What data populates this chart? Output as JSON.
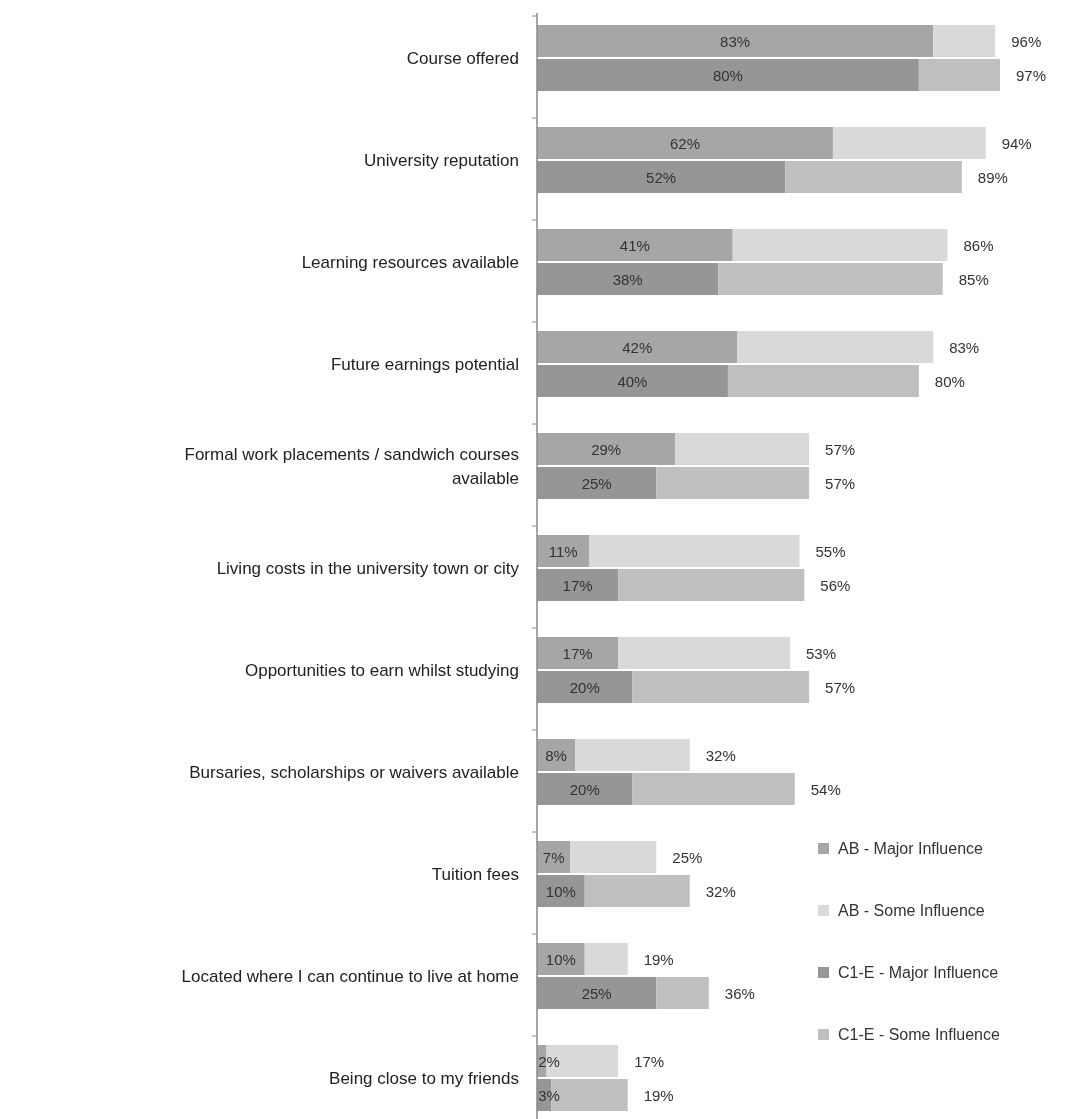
{
  "chart_data": {
    "type": "bar",
    "orientation": "horizontal",
    "stacked": true,
    "categories": [
      "Course offered",
      null,
      null,
      "University reputation",
      null,
      null,
      "Learning resources available",
      null,
      null,
      "Future earnings potential",
      null,
      null,
      "Formal work placements / sandwich courses available",
      null,
      null,
      "Living costs in the university town or city",
      null,
      null,
      "Opportunities to earn whilst studying",
      null,
      null,
      "Bursaries, scholarships or waivers available",
      null,
      null,
      "Tuition fees",
      null,
      null,
      "Located where I can continue to live at home",
      null,
      null,
      "Being close to my friends",
      null,
      null
    ],
    "series": [
      {
        "name": "AB - Major Influence",
        "color": "#a6a6a6",
        "values": [
          83,
          null,
          null,
          62,
          null,
          null,
          41,
          null,
          null,
          42,
          null,
          null,
          29,
          null,
          null,
          11,
          null,
          null,
          17,
          null,
          null,
          8,
          null,
          null,
          7,
          null,
          null,
          10,
          null,
          null,
          2,
          null,
          null
        ],
        "value_labels": [
          "83%",
          null,
          null,
          "62%",
          null,
          null,
          "41%",
          null,
          null,
          "42%",
          null,
          null,
          "29%",
          null,
          null,
          "11%",
          null,
          null,
          "17%",
          null,
          null,
          "8%",
          null,
          null,
          "7%",
          null,
          null,
          "10%",
          null,
          null,
          "2%",
          null,
          null
        ]
      },
      {
        "name": "AB - Some Influence",
        "color": "#d9d9d9",
        "values": [
          13,
          null,
          null,
          32,
          null,
          null,
          45,
          null,
          null,
          41,
          null,
          null,
          28,
          null,
          null,
          44,
          null,
          null,
          36,
          null,
          null,
          24,
          null,
          null,
          18,
          null,
          null,
          9,
          null,
          null,
          15,
          null,
          null
        ]
      },
      {
        "name": "C1-E - Major Influence",
        "color": "#969696",
        "values": [
          null,
          80,
          null,
          null,
          52,
          null,
          null,
          38,
          null,
          null,
          40,
          null,
          null,
          25,
          null,
          null,
          17,
          null,
          null,
          20,
          null,
          null,
          20,
          null,
          null,
          10,
          null,
          null,
          25,
          null,
          null,
          3,
          null
        ],
        "value_labels": [
          null,
          "80%",
          null,
          null,
          "52%",
          null,
          null,
          "38%",
          null,
          null,
          "40%",
          null,
          null,
          "25%",
          null,
          null,
          "17%",
          null,
          null,
          "20%",
          null,
          null,
          "20%",
          null,
          null,
          "10%",
          null,
          null,
          "25%",
          null,
          null,
          "3%",
          null
        ]
      },
      {
        "name": "C1-E - Some Influence",
        "color": "#bfbfbf",
        "values": [
          null,
          17,
          null,
          null,
          37,
          null,
          null,
          47,
          null,
          null,
          40,
          null,
          null,
          32,
          null,
          null,
          39,
          null,
          null,
          37,
          null,
          null,
          34,
          null,
          null,
          22,
          null,
          null,
          11,
          null,
          null,
          16,
          null
        ]
      }
    ],
    "totals": [
      "96%",
      "97%",
      null,
      "94%",
      "89%",
      null,
      "86%",
      "85%",
      null,
      "83%",
      "80%",
      null,
      "57%",
      "57%",
      null,
      "55%",
      "56%",
      null,
      "53%",
      "57%",
      null,
      "32%",
      "54%",
      null,
      "25%",
      "32%",
      null,
      "19%",
      "36%",
      null,
      "17%",
      "19%",
      null
    ],
    "tick_labels": "y",
    "legend": "bottom right"
  }
}
